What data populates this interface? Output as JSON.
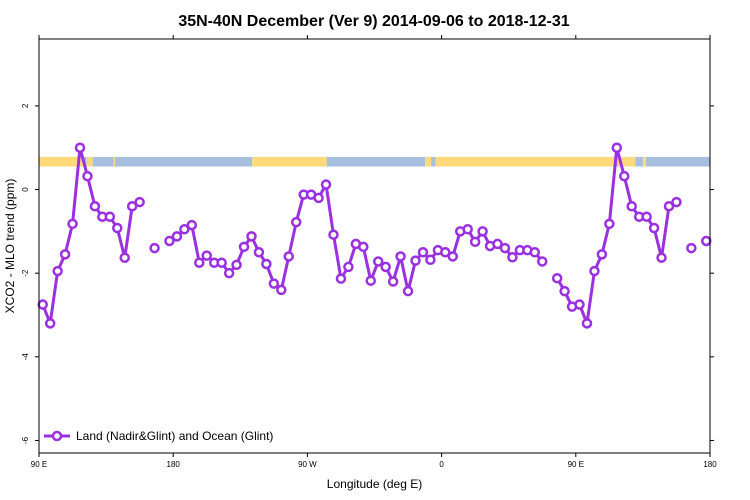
{
  "chart_data": {
    "type": "line",
    "title": "35N-40N December (Ver 9)   2014-09-06 to 2018-12-31",
    "xlabel": "Longitude (deg E)",
    "ylabel": "XCO2 - MLO trend (ppm)",
    "xlim": [
      90,
      540
    ],
    "ylim": [
      -6.3,
      3.6
    ],
    "x_ticks": [
      {
        "value": 90,
        "label": "90 E"
      },
      {
        "value": 180,
        "label": "180"
      },
      {
        "value": 270,
        "label": "90 W"
      },
      {
        "value": 360,
        "label": "0"
      },
      {
        "value": 450,
        "label": "90 E"
      },
      {
        "value": 540,
        "label": "180"
      }
    ],
    "y_ticks": [
      {
        "value": 2,
        "label": "2"
      },
      {
        "value": 0,
        "label": "0"
      },
      {
        "value": -2,
        "label": "-2"
      },
      {
        "value": -4,
        "label": "-4"
      },
      {
        "value": -6,
        "label": "-6"
      }
    ],
    "legend": {
      "position": "bottom-left",
      "label": "Land (Nadir&Glint) and Ocean (Glint)"
    },
    "series": [
      {
        "name": "Land (Nadir&Glint) and Ocean (Glint)",
        "color": "#9b30e0",
        "points": [
          [
            92.5,
            -2.75
          ],
          [
            97.5,
            -3.2
          ],
          [
            102.5,
            -1.95
          ],
          [
            107.5,
            -1.55
          ],
          [
            112.5,
            -0.82
          ],
          [
            117.5,
            1.0
          ],
          [
            122.5,
            0.32
          ],
          [
            127.5,
            -0.4
          ],
          [
            132.5,
            -0.65
          ],
          [
            137.5,
            -0.65
          ],
          [
            142.5,
            -0.92
          ],
          [
            147.5,
            -1.63
          ],
          [
            152.5,
            -0.4
          ],
          [
            157.5,
            -0.3
          ],
          null,
          [
            167.5,
            -1.4
          ],
          null,
          [
            177.5,
            -1.23
          ],
          [
            182.5,
            -1.12
          ],
          [
            187.5,
            -0.95
          ],
          [
            192.5,
            -0.85
          ],
          [
            197.5,
            -1.75
          ],
          [
            202.5,
            -1.58
          ],
          [
            207.5,
            -1.75
          ],
          [
            212.5,
            -1.75
          ],
          [
            217.5,
            -2.0
          ],
          [
            222.5,
            -1.8
          ],
          [
            227.5,
            -1.37
          ],
          [
            232.5,
            -1.12
          ],
          [
            237.5,
            -1.5
          ],
          [
            242.5,
            -1.78
          ],
          [
            247.5,
            -2.25
          ],
          [
            252.5,
            -2.4
          ],
          [
            257.5,
            -1.6
          ],
          [
            262.5,
            -0.78
          ],
          [
            267.5,
            -0.12
          ],
          [
            272.5,
            -0.12
          ],
          [
            277.5,
            -0.2
          ],
          [
            282.5,
            0.12
          ],
          [
            287.5,
            -1.08
          ],
          [
            292.5,
            -2.13
          ],
          [
            297.5,
            -1.85
          ],
          [
            302.5,
            -1.3
          ],
          [
            307.5,
            -1.37
          ],
          [
            312.5,
            -2.18
          ],
          [
            317.5,
            -1.72
          ],
          [
            322.5,
            -1.85
          ],
          [
            327.5,
            -2.2
          ],
          [
            332.5,
            -1.6
          ],
          [
            337.5,
            -2.43
          ],
          [
            342.5,
            -1.7
          ],
          [
            347.5,
            -1.5
          ],
          [
            352.5,
            -1.68
          ],
          [
            357.5,
            -1.45
          ],
          [
            362.5,
            -1.5
          ],
          [
            367.5,
            -1.6
          ],
          [
            372.5,
            -1.0
          ],
          [
            377.5,
            -0.95
          ],
          [
            382.5,
            -1.25
          ],
          [
            387.5,
            -1.0
          ],
          [
            392.5,
            -1.35
          ],
          [
            397.5,
            -1.3
          ],
          [
            402.5,
            -1.4
          ],
          [
            407.5,
            -1.62
          ],
          [
            412.5,
            -1.45
          ],
          [
            417.5,
            -1.45
          ],
          [
            422.5,
            -1.5
          ],
          [
            427.5,
            -1.72
          ],
          null,
          [
            437.5,
            -2.12
          ],
          [
            442.5,
            -2.43
          ],
          [
            447.5,
            -2.8
          ],
          [
            452.5,
            -2.75
          ],
          [
            457.5,
            -3.2
          ],
          [
            462.5,
            -1.95
          ],
          [
            467.5,
            -1.55
          ],
          [
            472.5,
            -0.82
          ],
          [
            477.5,
            1.0
          ],
          [
            482.5,
            0.32
          ],
          [
            487.5,
            -0.4
          ],
          [
            492.5,
            -0.65
          ],
          [
            497.5,
            -0.65
          ],
          [
            502.5,
            -0.92
          ],
          [
            507.5,
            -1.63
          ],
          [
            512.5,
            -0.4
          ],
          [
            517.5,
            -0.3
          ],
          null,
          [
            527.5,
            -1.4
          ],
          null,
          [
            537.5,
            -1.23
          ]
        ]
      }
    ],
    "surface_strip": {
      "y_range": [
        0.55,
        0.78
      ],
      "colors": {
        "land": "#ffd97a",
        "ocean": "#a7bfdf"
      },
      "segments": [
        {
          "type": "land",
          "from": 90,
          "to": 120
        },
        {
          "type": "ocean",
          "from": 120,
          "to": 122
        },
        {
          "type": "land",
          "from": 122,
          "to": 126
        },
        {
          "type": "ocean",
          "from": 126,
          "to": 140
        },
        {
          "type": "land",
          "from": 140,
          "to": 141
        },
        {
          "type": "ocean",
          "from": 141,
          "to": 233
        },
        {
          "type": "land",
          "from": 233,
          "to": 283
        },
        {
          "type": "ocean",
          "from": 283,
          "to": 349
        },
        {
          "type": "land",
          "from": 349,
          "to": 353
        },
        {
          "type": "ocean",
          "from": 353,
          "to": 356
        },
        {
          "type": "land",
          "from": 356,
          "to": 476
        },
        {
          "type": "ocean",
          "from": 476,
          "to": 478
        },
        {
          "type": "land",
          "from": 478,
          "to": 490
        },
        {
          "type": "ocean",
          "from": 490,
          "to": 495
        },
        {
          "type": "land",
          "from": 495,
          "to": 497
        },
        {
          "type": "ocean",
          "from": 497,
          "to": 540
        }
      ]
    }
  }
}
